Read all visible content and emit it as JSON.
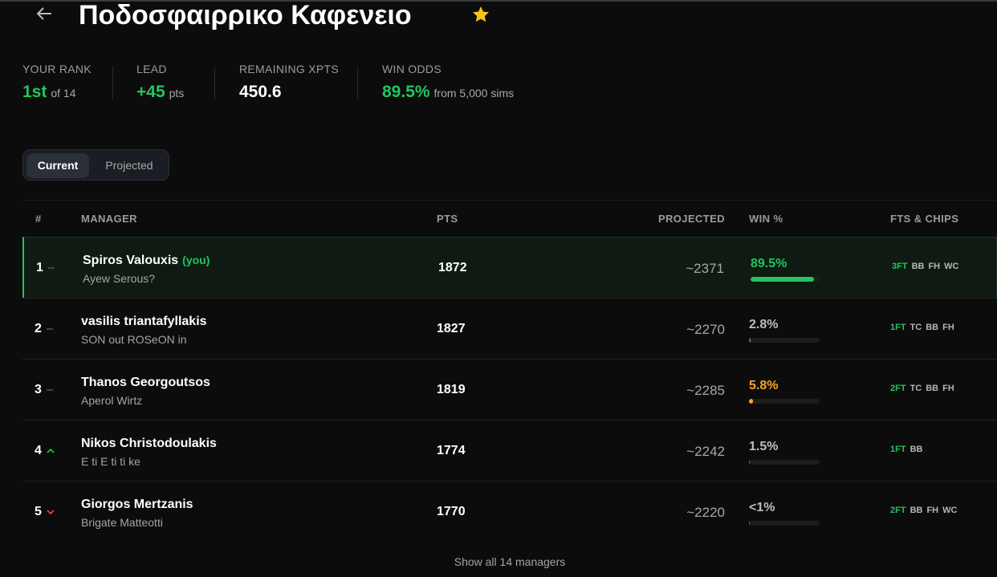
{
  "header": {
    "title": "Ποδοσφαιρρικο Καφενειο"
  },
  "stats": [
    {
      "label": "YOUR RANK",
      "value": "1st",
      "suffix": "of 14"
    },
    {
      "label": "LEAD",
      "value": "+45",
      "suffix": "pts"
    },
    {
      "label": "REMAINING XPTS",
      "value": "450.6"
    },
    {
      "label": "WIN ODDS",
      "value": "89.5%",
      "suffix": "from 5,000 sims"
    }
  ],
  "tabs": [
    "Current",
    "Projected"
  ],
  "table": {
    "columns": [
      "#",
      "MANAGER",
      "PTS",
      "PROJECTED",
      "WIN %",
      "FTS & CHIPS"
    ],
    "rows": [
      {
        "rank": 1,
        "trend": "same",
        "manager": "Spiros Valouxis",
        "you": "(you)",
        "team": "Ayew Serous?",
        "pts": 1872,
        "projected": "~2371",
        "win": {
          "value": 89.5,
          "label": "89.5%"
        },
        "color": "#22c55e",
        "fts": "3FT",
        "chips": [
          "BB",
          "FH",
          "WC"
        ]
      },
      {
        "rank": 2,
        "trend": "same",
        "manager": "vasilis triantafyllakis",
        "team": "SON out ROSeON in",
        "pts": 1827,
        "projected": "~2270",
        "win": {
          "value": 2.8,
          "label": "2.8%"
        },
        "color": "#bdbdbd",
        "fts": "1FT",
        "chips": [
          "TC",
          "BB",
          "FH"
        ]
      },
      {
        "rank": 3,
        "trend": "same",
        "manager": "Thanos Georgoutsos",
        "team": "Aperol Wirtz",
        "pts": 1819,
        "projected": "~2285",
        "win": {
          "value": 5.8,
          "label": "5.8%"
        },
        "color": "#f5a623",
        "fts": "2FT",
        "chips": [
          "TC",
          "BB",
          "FH"
        ]
      },
      {
        "rank": 4,
        "trend": "up",
        "manager": "Nikos Christodoulakis",
        "team": "E ti E ti ti ke",
        "pts": 1774,
        "projected": "~2242",
        "win": {
          "value": 1.5,
          "label": "1.5%"
        },
        "color": "#bdbdbd",
        "fts": "1FT",
        "chips": [
          "BB"
        ]
      },
      {
        "rank": 5,
        "trend": "down",
        "manager": "Giorgos Mertzanis",
        "team": "Brigate Matteotti",
        "pts": 1770,
        "projected": "~2220",
        "win": {
          "value": 0.5,
          "label": "<1%"
        },
        "color": "#bdbdbd",
        "fts": "2FT",
        "chips": [
          "BB",
          "FH",
          "WC"
        ]
      }
    ]
  },
  "footer": "Show all 14 managers"
}
